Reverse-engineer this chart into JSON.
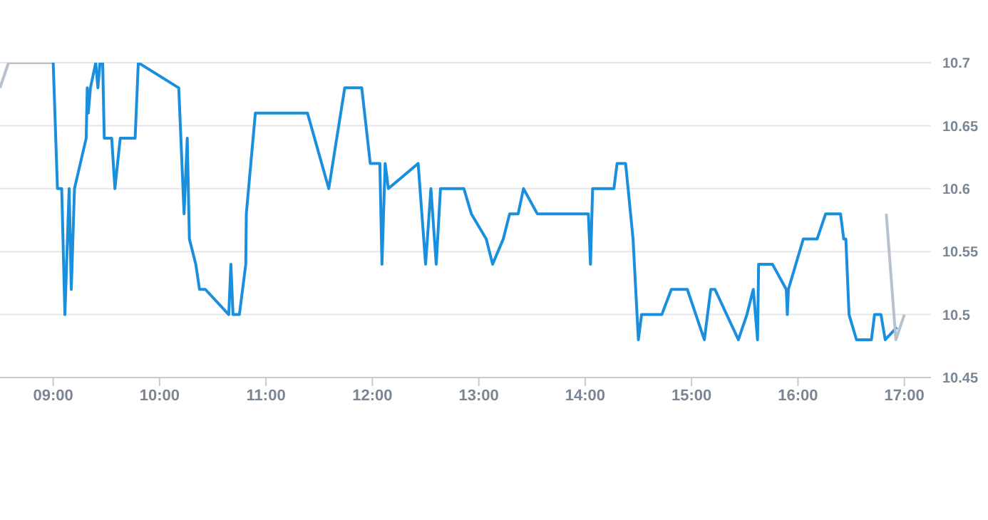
{
  "chart_data": {
    "type": "line",
    "xlim": [
      8.5,
      17.25
    ],
    "xticks": [
      {
        "value": 9,
        "label": "09:00"
      },
      {
        "value": 10,
        "label": "10:00"
      },
      {
        "value": 11,
        "label": "11:00"
      },
      {
        "value": 12,
        "label": "12:00"
      },
      {
        "value": 13,
        "label": "13:00"
      },
      {
        "value": 14,
        "label": "14:00"
      },
      {
        "value": 15,
        "label": "15:00"
      },
      {
        "value": 16,
        "label": "16:00"
      },
      {
        "value": 17,
        "label": "17:00"
      }
    ],
    "ylim": [
      10.45,
      10.7
    ],
    "yticks": [
      10.45,
      10.5,
      10.55,
      10.6,
      10.65,
      10.7
    ],
    "grid": "y",
    "line_style": "solid",
    "series": [
      {
        "color": "#b8c2cc",
        "x": [
          8.5,
          8.58,
          9.0
        ],
        "values": [
          10.68,
          10.7,
          10.7
        ]
      },
      {
        "color": "#1a8fdd",
        "x": [
          9.0,
          9.04,
          9.08,
          9.11,
          9.15,
          9.17,
          9.2,
          9.31,
          9.32,
          9.33,
          9.35,
          9.4,
          9.42,
          9.44,
          9.465,
          9.48,
          9.55,
          9.58,
          9.63,
          9.77,
          9.8,
          10.18,
          10.23,
          10.26,
          10.28,
          10.34,
          10.375,
          10.43,
          10.65,
          10.67,
          10.69,
          10.75,
          10.81,
          10.815,
          10.9,
          11.39,
          11.59,
          11.74,
          11.9,
          11.98,
          12.07,
          12.09,
          12.12,
          12.15,
          12.43,
          12.5,
          12.55,
          12.6,
          12.64,
          12.86,
          12.93,
          13.07,
          13.13,
          13.23,
          13.29,
          13.37,
          13.42,
          13.55,
          14.03,
          14.05,
          14.07,
          14.27,
          14.3,
          14.38,
          14.45,
          14.5,
          14.53,
          14.72,
          14.81,
          14.96,
          15.12,
          15.18,
          15.22,
          15.44,
          15.52,
          15.58,
          15.62,
          15.63,
          15.76,
          15.89,
          15.9,
          15.91,
          16.05,
          16.18,
          16.26,
          16.4,
          16.43,
          16.45,
          16.48,
          16.55,
          16.69,
          16.72,
          16.78,
          16.82,
          16.93
        ],
        "values": [
          10.7,
          10.6,
          10.6,
          10.5,
          10.6,
          10.52,
          10.6,
          10.64,
          10.68,
          10.66,
          10.68,
          10.7,
          10.68,
          10.7,
          10.7,
          10.64,
          10.64,
          10.6,
          10.64,
          10.64,
          10.7,
          10.68,
          10.58,
          10.64,
          10.56,
          10.54,
          10.52,
          10.52,
          10.5,
          10.54,
          10.5,
          10.5,
          10.54,
          10.58,
          10.66,
          10.66,
          10.6,
          10.68,
          10.68,
          10.62,
          10.62,
          10.54,
          10.62,
          10.6,
          10.62,
          10.54,
          10.6,
          10.54,
          10.6,
          10.6,
          10.58,
          10.56,
          10.54,
          10.56,
          10.58,
          10.58,
          10.6,
          10.58,
          10.58,
          10.54,
          10.6,
          10.6,
          10.62,
          10.62,
          10.56,
          10.48,
          10.5,
          10.5,
          10.52,
          10.52,
          10.48,
          10.52,
          10.52,
          10.48,
          10.5,
          10.52,
          10.48,
          10.54,
          10.54,
          10.52,
          10.5,
          10.52,
          10.56,
          10.56,
          10.58,
          10.58,
          10.56,
          10.56,
          10.5,
          10.48,
          10.48,
          10.5,
          10.5,
          10.48,
          10.49
        ]
      },
      {
        "color": "#b8c2cc",
        "x": [
          16.83,
          16.92,
          17.0
        ],
        "values": [
          10.58,
          10.48,
          10.5
        ]
      }
    ]
  }
}
